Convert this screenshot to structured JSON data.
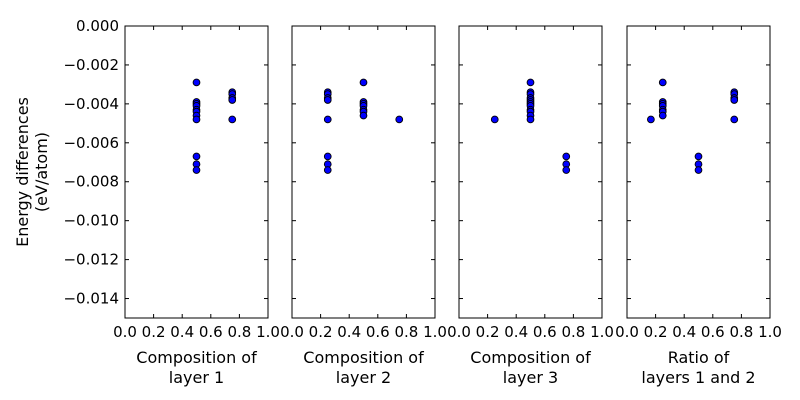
{
  "colors": {
    "marker_fill": "#0000ff",
    "marker_edge": "#000000",
    "axes": "#000000",
    "background": "#ffffff"
  },
  "chart_data": [
    {
      "type": "scatter",
      "xlabel": [
        "Composition of",
        "layer 1"
      ],
      "ylabel": [
        "Energy differences",
        "(eV/atom)"
      ],
      "xlim": [
        0.0,
        1.0
      ],
      "ylim": [
        -0.015,
        0.0
      ],
      "xticks": [
        "0.0",
        "0.2",
        "0.4",
        "0.6",
        "0.8",
        "1.0"
      ],
      "yticks": [
        "0.000",
        "−0.002",
        "−0.004",
        "−0.006",
        "−0.008",
        "−0.010",
        "−0.012",
        "−0.014"
      ],
      "points": [
        [
          0.5,
          -0.0029
        ],
        [
          0.5,
          -0.0039
        ],
        [
          0.5,
          -0.004
        ],
        [
          0.5,
          -0.0041
        ],
        [
          0.5,
          -0.0043
        ],
        [
          0.5,
          -0.0044
        ],
        [
          0.5,
          -0.0046
        ],
        [
          0.5,
          -0.0048
        ],
        [
          0.5,
          -0.0067
        ],
        [
          0.5,
          -0.0071
        ],
        [
          0.5,
          -0.0074
        ],
        [
          0.75,
          -0.0034
        ],
        [
          0.75,
          -0.0035
        ],
        [
          0.75,
          -0.0037
        ],
        [
          0.75,
          -0.0038
        ],
        [
          0.75,
          -0.0048
        ]
      ]
    },
    {
      "type": "scatter",
      "xlabel": [
        "Composition of",
        "layer 2"
      ],
      "ylabel": [],
      "xlim": [
        0.0,
        1.0
      ],
      "ylim": [
        -0.015,
        0.0
      ],
      "xticks": [
        "0.0",
        "0.2",
        "0.4",
        "0.6",
        "0.8",
        "1.0"
      ],
      "yticks": [],
      "points": [
        [
          0.25,
          -0.0034
        ],
        [
          0.25,
          -0.0035
        ],
        [
          0.25,
          -0.0037
        ],
        [
          0.25,
          -0.0038
        ],
        [
          0.25,
          -0.0048
        ],
        [
          0.25,
          -0.0067
        ],
        [
          0.25,
          -0.0071
        ],
        [
          0.25,
          -0.0074
        ],
        [
          0.5,
          -0.0029
        ],
        [
          0.5,
          -0.0039
        ],
        [
          0.5,
          -0.004
        ],
        [
          0.5,
          -0.0041
        ],
        [
          0.5,
          -0.0043
        ],
        [
          0.5,
          -0.0044
        ],
        [
          0.5,
          -0.0046
        ],
        [
          0.75,
          -0.0048
        ]
      ]
    },
    {
      "type": "scatter",
      "xlabel": [
        "Composition of",
        "layer 3"
      ],
      "ylabel": [],
      "xlim": [
        0.0,
        1.0
      ],
      "ylim": [
        -0.015,
        0.0
      ],
      "xticks": [
        "0.0",
        "0.2",
        "0.4",
        "0.6",
        "0.8",
        "1.0"
      ],
      "yticks": [],
      "points": [
        [
          0.25,
          -0.0048
        ],
        [
          0.5,
          -0.0029
        ],
        [
          0.5,
          -0.0034
        ],
        [
          0.5,
          -0.0035
        ],
        [
          0.5,
          -0.0037
        ],
        [
          0.5,
          -0.0038
        ],
        [
          0.5,
          -0.0039
        ],
        [
          0.5,
          -0.004
        ],
        [
          0.5,
          -0.0041
        ],
        [
          0.5,
          -0.0043
        ],
        [
          0.5,
          -0.0044
        ],
        [
          0.5,
          -0.0046
        ],
        [
          0.5,
          -0.0048
        ],
        [
          0.75,
          -0.0067
        ],
        [
          0.75,
          -0.0071
        ],
        [
          0.75,
          -0.0074
        ]
      ]
    },
    {
      "type": "scatter",
      "xlabel": [
        "Ratio of",
        "layers 1 and 2"
      ],
      "ylabel": [],
      "xlim": [
        0.0,
        1.0
      ],
      "ylim": [
        -0.015,
        0.0
      ],
      "xticks": [
        "0.0",
        "0.2",
        "0.4",
        "0.6",
        "0.8",
        "1.0"
      ],
      "yticks": [],
      "points": [
        [
          0.167,
          -0.0048
        ],
        [
          0.25,
          -0.0029
        ],
        [
          0.25,
          -0.0039
        ],
        [
          0.25,
          -0.004
        ],
        [
          0.25,
          -0.0041
        ],
        [
          0.25,
          -0.0043
        ],
        [
          0.25,
          -0.0044
        ],
        [
          0.25,
          -0.0046
        ],
        [
          0.5,
          -0.0067
        ],
        [
          0.5,
          -0.0071
        ],
        [
          0.5,
          -0.0074
        ],
        [
          0.75,
          -0.0034
        ],
        [
          0.75,
          -0.0035
        ],
        [
          0.75,
          -0.0037
        ],
        [
          0.75,
          -0.0038
        ],
        [
          0.75,
          -0.0048
        ]
      ]
    }
  ]
}
